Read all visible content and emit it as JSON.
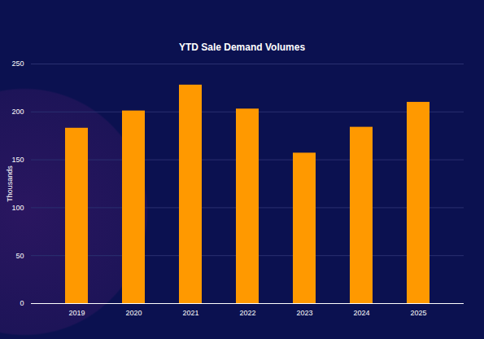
{
  "chart_data": {
    "type": "bar",
    "title": "YTD Sale Demand Volumes",
    "y_label": "Thousands",
    "categories": [
      "2019",
      "2020",
      "2021",
      "2022",
      "2023",
      "2024",
      "2025"
    ],
    "values": [
      183,
      201,
      228,
      203,
      157,
      184,
      210
    ],
    "color": "#ff9900",
    "ylim": [
      0,
      250
    ],
    "yticks": [
      0,
      50,
      100,
      150,
      200,
      250
    ],
    "grid": true
  }
}
